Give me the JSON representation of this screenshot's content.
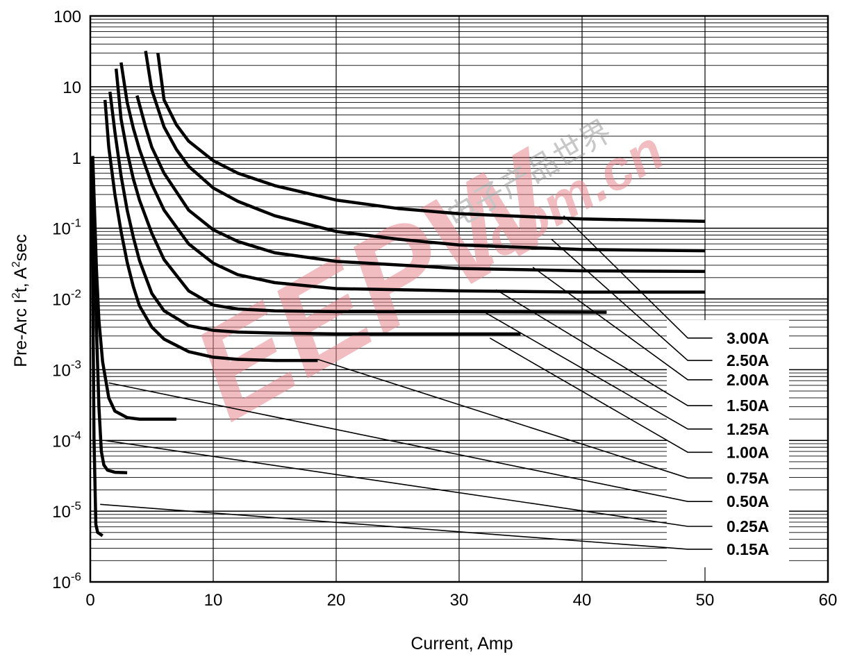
{
  "chart_data": {
    "type": "line",
    "title": "",
    "xlabel": "Current, Amp",
    "ylabel": {
      "base": "Pre-Arc I",
      "sup1": "2",
      "mid": "t, A",
      "sup2": "2",
      "tail": "sec"
    },
    "xlim": [
      0,
      60
    ],
    "ylim": [
      1e-06,
      100
    ],
    "yscale": "log",
    "grid": true,
    "x_ticks": [
      "0",
      "10",
      "20",
      "30",
      "40",
      "50",
      "60"
    ],
    "y_ticks": [
      {
        "base": "100",
        "exp": ""
      },
      {
        "base": "10",
        "exp": ""
      },
      {
        "base": "1",
        "exp": ""
      },
      {
        "base": "10",
        "exp": "-1"
      },
      {
        "base": "10",
        "exp": "-2"
      },
      {
        "base": "10",
        "exp": "-3"
      },
      {
        "base": "10",
        "exp": "-4"
      },
      {
        "base": "10",
        "exp": "-5"
      },
      {
        "base": "10",
        "exp": "-6"
      }
    ],
    "legend_position": "right",
    "series": [
      {
        "name": "3.00A",
        "x": [
          5.5,
          6,
          7,
          8,
          10,
          12,
          15,
          20,
          25,
          30,
          40,
          50
        ],
        "y": [
          30,
          6.5,
          2.9,
          1.7,
          0.9,
          0.6,
          0.4,
          0.25,
          0.19,
          0.16,
          0.135,
          0.125
        ]
      },
      {
        "name": "2.50A",
        "x": [
          4.5,
          5,
          6,
          7,
          8,
          10,
          12,
          15,
          20,
          25,
          30,
          40,
          50
        ],
        "y": [
          32,
          9,
          2.7,
          1.3,
          0.75,
          0.37,
          0.24,
          0.15,
          0.09,
          0.07,
          0.058,
          0.05,
          0.048
        ]
      },
      {
        "name": "2.00A",
        "x": [
          3.8,
          4.5,
          5,
          6,
          8,
          10,
          12,
          15,
          20,
          30,
          40,
          50
        ],
        "y": [
          7.5,
          2.7,
          1.4,
          0.6,
          0.18,
          0.095,
          0.065,
          0.045,
          0.034,
          0.027,
          0.025,
          0.0245
        ]
      },
      {
        "name": "1.50A",
        "x": [
          2.5,
          3,
          3.5,
          4,
          5,
          6,
          8,
          10,
          12,
          15,
          20,
          30,
          40,
          50
        ],
        "y": [
          22,
          6,
          2.6,
          1.3,
          0.42,
          0.18,
          0.06,
          0.032,
          0.022,
          0.017,
          0.014,
          0.013,
          0.0125,
          0.0125
        ]
      },
      {
        "name": "1.25A",
        "x": [
          2.1,
          2.5,
          3,
          3.5,
          4,
          5,
          6,
          8,
          10,
          12,
          15,
          20,
          30,
          42
        ],
        "y": [
          18,
          3.5,
          1.2,
          0.5,
          0.25,
          0.085,
          0.036,
          0.013,
          0.0082,
          0.0072,
          0.0068,
          0.0066,
          0.0066,
          0.0065
        ]
      },
      {
        "name": "1.00A",
        "x": [
          1.6,
          2,
          2.5,
          3,
          3.5,
          4,
          5,
          6,
          8,
          10,
          12,
          15,
          20,
          25,
          30,
          35
        ],
        "y": [
          8.5,
          2.3,
          0.55,
          0.18,
          0.075,
          0.035,
          0.012,
          0.0068,
          0.0042,
          0.0036,
          0.0034,
          0.0033,
          0.0032,
          0.0032,
          0.0032,
          0.0032
        ]
      },
      {
        "name": "0.75A",
        "x": [
          1.2,
          1.5,
          2,
          2.5,
          3,
          3.5,
          4,
          5,
          6,
          8,
          10,
          12,
          15,
          18.5
        ],
        "y": [
          6.5,
          1.4,
          0.3,
          0.09,
          0.033,
          0.015,
          0.008,
          0.004,
          0.0027,
          0.0018,
          0.0015,
          0.0014,
          0.00135,
          0.00135
        ]
      },
      {
        "name": "0.50A",
        "x": [
          0.2,
          0.4,
          0.5,
          0.7,
          1,
          1.5,
          2,
          3,
          4,
          5,
          7
        ],
        "y": [
          1.05,
          0.09,
          0.027,
          0.005,
          0.0013,
          0.0004,
          0.00026,
          0.00021,
          0.0002,
          0.0002,
          0.0002
        ]
      },
      {
        "name": "0.25A",
        "x": [
          0.3,
          0.5,
          0.7,
          0.9,
          1.1,
          1.4,
          2,
          3
        ],
        "y": [
          0.18,
          0.004,
          0.0003,
          7e-05,
          4.5e-05,
          3.8e-05,
          3.55e-05,
          3.5e-05
        ]
      },
      {
        "name": "0.15A",
        "x": [
          0.1,
          0.2,
          0.3,
          0.45,
          0.6,
          1
        ],
        "y": [
          1.0,
          0.02,
          0.00011,
          6.5e-06,
          5e-06,
          4.5e-06
        ]
      }
    ],
    "leader_lines": [
      {
        "series": "3.00A",
        "x": [
          38.5,
          48.6,
          50.6
        ],
        "y": [
          0.15,
          0.0028,
          0.0028
        ]
      },
      {
        "series": "2.50A",
        "x": [
          37.5,
          48.6,
          50.6
        ],
        "y": [
          0.07,
          0.00135,
          0.00135
        ]
      },
      {
        "series": "2.00A",
        "x": [
          36,
          48.6,
          50.6
        ],
        "y": [
          0.028,
          0.00072,
          0.00072
        ]
      },
      {
        "series": "1.50A",
        "x": [
          33,
          48.6,
          50.6
        ],
        "y": [
          0.0135,
          0.00031,
          0.00031
        ]
      },
      {
        "series": "1.25A",
        "x": [
          32,
          48.6,
          50.6
        ],
        "y": [
          0.0066,
          0.000145,
          0.000145
        ]
      },
      {
        "series": "1.00A",
        "x": [
          32.5,
          48.6,
          50.6
        ],
        "y": [
          0.0028,
          6.8e-05,
          6.8e-05
        ]
      },
      {
        "series": "0.75A",
        "x": [
          18.5,
          48.6,
          50.6
        ],
        "y": [
          0.0014,
          2.95e-05,
          2.95e-05
        ]
      },
      {
        "series": "0.50A",
        "x": [
          1.5,
          48.6,
          50.6
        ],
        "y": [
          0.00065,
          1.37e-05,
          1.37e-05
        ]
      },
      {
        "series": "0.25A",
        "x": [
          1.2,
          48.6,
          50.6
        ],
        "y": [
          0.0001,
          6.1e-06,
          6.1e-06
        ]
      },
      {
        "series": "0.15A",
        "x": [
          0.8,
          48.6,
          50.6
        ],
        "y": [
          1.25e-05,
          2.9e-06,
          2.9e-06
        ]
      }
    ],
    "watermark": {
      "latin": "EEPW",
      "domain": ".com.cn",
      "cjk": "电子产品世界"
    }
  }
}
